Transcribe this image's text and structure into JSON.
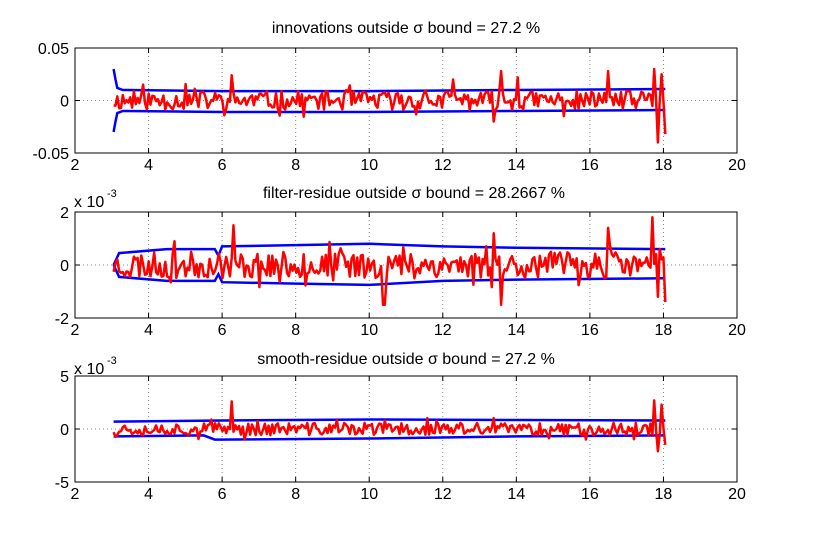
{
  "chart_data": [
    {
      "type": "line",
      "title": "innovations outside σ bound = 27.2 %",
      "xlim": [
        2,
        20
      ],
      "ylim": [
        -0.05,
        0.05
      ],
      "xticks": [
        2,
        4,
        6,
        8,
        10,
        12,
        14,
        16,
        18,
        20
      ],
      "xtick_labels": [
        "2",
        "4",
        "6",
        "8",
        "10",
        "12",
        "14",
        "16",
        "18",
        "20"
      ],
      "yticks": [
        -0.05,
        0,
        0.05
      ],
      "ytick_labels": [
        "-0.05",
        "0",
        "0.05"
      ],
      "y_multiplier": "",
      "grid": "dotted",
      "colors": {
        "bound": "#0000ff",
        "signal": "#ff0000"
      },
      "x_range": [
        3.05,
        18.05
      ],
      "bound_upper": [
        [
          3.05,
          0.03
        ],
        [
          3.1,
          0.02
        ],
        [
          3.15,
          0.012
        ],
        [
          3.3,
          0.01
        ],
        [
          6,
          0.009
        ],
        [
          10,
          0.009
        ],
        [
          14,
          0.01
        ],
        [
          18.05,
          0.011
        ]
      ],
      "bound_lower": [
        [
          3.05,
          -0.03
        ],
        [
          3.1,
          -0.02
        ],
        [
          3.15,
          -0.012
        ],
        [
          3.3,
          -0.01
        ],
        [
          6,
          -0.011
        ],
        [
          10,
          -0.011
        ],
        [
          14,
          -0.01
        ],
        [
          18.05,
          -0.009
        ]
      ],
      "signal": {
        "amplitude": 0.009,
        "seed": 11,
        "spikes": [
          [
            6.25,
            0.024
          ],
          [
            12.3,
            0.02
          ],
          [
            13.4,
            -0.02
          ],
          [
            13.6,
            0.028
          ],
          [
            14.05,
            0.022
          ],
          [
            16.5,
            0.028
          ],
          [
            17.75,
            0.03
          ],
          [
            17.85,
            -0.04
          ],
          [
            17.95,
            0.025
          ],
          [
            18.05,
            -0.032
          ]
        ]
      }
    },
    {
      "type": "line",
      "title": "filter-residue outside σ bound = 28.2667 %",
      "xlim": [
        2,
        20
      ],
      "ylim": [
        -2,
        2
      ],
      "xticks": [
        2,
        4,
        6,
        8,
        10,
        12,
        14,
        16,
        18,
        20
      ],
      "xtick_labels": [
        "2",
        "4",
        "6",
        "8",
        "10",
        "12",
        "14",
        "16",
        "18",
        "20"
      ],
      "yticks": [
        -2,
        0,
        2
      ],
      "ytick_labels": [
        "-2",
        "0",
        "2"
      ],
      "y_multiplier": "x 10",
      "y_multiplier_exp": "-3",
      "grid": "dotted",
      "colors": {
        "bound": "#0000ff",
        "signal": "#ff0000"
      },
      "x_range": [
        3.05,
        18.05
      ],
      "bound_upper": [
        [
          3.05,
          0.0
        ],
        [
          3.2,
          0.45
        ],
        [
          4.5,
          0.6
        ],
        [
          5.8,
          0.6
        ],
        [
          5.9,
          0.35
        ],
        [
          6.0,
          0.7
        ],
        [
          8,
          0.75
        ],
        [
          10,
          0.8
        ],
        [
          12,
          0.7
        ],
        [
          14,
          0.65
        ],
        [
          18.05,
          0.6
        ]
      ],
      "bound_lower": [
        [
          3.05,
          0.0
        ],
        [
          3.2,
          -0.45
        ],
        [
          4.5,
          -0.6
        ],
        [
          5.8,
          -0.6
        ],
        [
          5.9,
          -0.35
        ],
        [
          6.0,
          -0.65
        ],
        [
          8,
          -0.7
        ],
        [
          10,
          -0.75
        ],
        [
          12,
          -0.6
        ],
        [
          14,
          -0.55
        ],
        [
          18.05,
          -0.5
        ]
      ],
      "signal": {
        "amplitude": 0.5,
        "seed": 23,
        "spikes": [
          [
            6.3,
            1.5
          ],
          [
            13.4,
            1.2
          ],
          [
            13.6,
            -1.5
          ],
          [
            16.5,
            1.4
          ],
          [
            17.7,
            1.8
          ],
          [
            17.85,
            -1.2
          ],
          [
            18.05,
            -1.4
          ],
          [
            10.4,
            -1.5
          ]
        ]
      }
    },
    {
      "type": "line",
      "title": "smooth-residue outside σ bound = 27.2 %",
      "xlim": [
        2,
        20
      ],
      "ylim": [
        -5,
        5
      ],
      "xticks": [
        2,
        4,
        6,
        8,
        10,
        12,
        14,
        16,
        18,
        20
      ],
      "xtick_labels": [
        "2",
        "4",
        "6",
        "8",
        "10",
        "12",
        "14",
        "16",
        "18",
        "20"
      ],
      "yticks": [
        -5,
        0,
        5
      ],
      "ytick_labels": [
        "-5",
        "0",
        "5"
      ],
      "y_multiplier": "x 10",
      "y_multiplier_exp": "-3",
      "grid": "dotted",
      "colors": {
        "bound": "#0000ff",
        "signal": "#ff0000"
      },
      "x_range": [
        3.05,
        18.05
      ],
      "bound_upper": [
        [
          3.05,
          0.7
        ],
        [
          6,
          0.8
        ],
        [
          10,
          0.9
        ],
        [
          14,
          0.85
        ],
        [
          18.05,
          0.8
        ]
      ],
      "bound_lower": [
        [
          3.05,
          -0.7
        ],
        [
          5.5,
          -0.6
        ],
        [
          5.8,
          -1.0
        ],
        [
          10,
          -0.9
        ],
        [
          14,
          -0.7
        ],
        [
          18.05,
          -0.6
        ]
      ],
      "signal": {
        "amplitude": 0.6,
        "seed": 37,
        "spikes": [
          [
            6.25,
            2.6
          ],
          [
            17.75,
            2.7
          ],
          [
            17.85,
            -2.1
          ],
          [
            17.95,
            2.3
          ],
          [
            18.05,
            -1.5
          ]
        ]
      }
    }
  ]
}
